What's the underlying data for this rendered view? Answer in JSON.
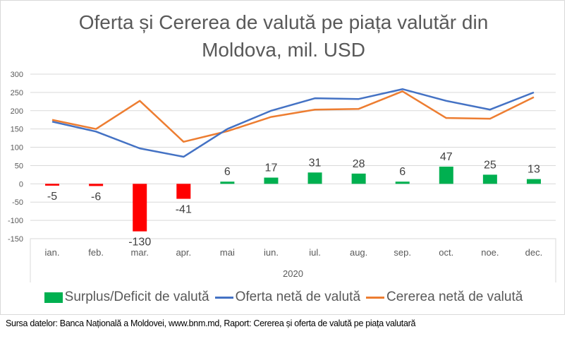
{
  "chart_data": {
    "type": "bar+line",
    "title": "Oferta și Cererea de valută pe piața valutăr din Moldova, mil. USD",
    "title_lines": [
      "Oferta și Cererea de valută pe piața valutăr din",
      "Moldova, mil. USD"
    ],
    "categories": [
      "ian.",
      "feb.",
      "mar.",
      "apr.",
      "mai",
      "iun.",
      "iul.",
      "aug.",
      "sep.",
      "oct.",
      "noe.",
      "dec."
    ],
    "category_group": "2020",
    "ylim": [
      -150,
      300
    ],
    "yticks": [
      300,
      250,
      200,
      150,
      100,
      50,
      0,
      -50,
      -100,
      -150
    ],
    "grid": true,
    "legend_position": "bottom",
    "series": [
      {
        "name": "Surplus/Deficit de valută",
        "type": "bar",
        "color": "#00b050",
        "negative_color": "#ff0000",
        "values": [
          -5,
          -6,
          -130,
          -41,
          6,
          17,
          31,
          28,
          6,
          47,
          25,
          13
        ]
      },
      {
        "name": "Oferta netă de valută",
        "type": "line",
        "color": "#4472c4",
        "values": [
          170,
          143,
          97,
          74,
          150,
          200,
          234,
          232,
          259,
          227,
          203,
          250
        ]
      },
      {
        "name": "Cererea netă de valută",
        "type": "line",
        "color": "#ed7d31",
        "values": [
          175,
          150,
          227,
          115,
          144,
          183,
          203,
          205,
          253,
          180,
          178,
          237
        ]
      }
    ]
  },
  "source": "Sursa datelor: Banca Națională a Moldovei, www.bnm.md, Raport: Cererea și oferta de valută pe piața valutară"
}
